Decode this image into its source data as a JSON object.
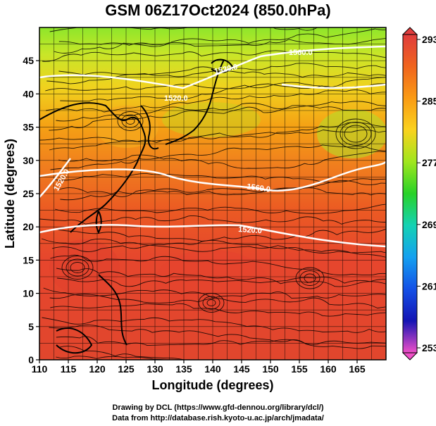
{
  "title": "GSM 06Z17Oct2024 (850.0hPa)",
  "x_axis": {
    "label": "Longitude (degrees)",
    "range": [
      110,
      170
    ],
    "ticks": [
      "110",
      "115",
      "120",
      "125",
      "130",
      "135",
      "140",
      "145",
      "150",
      "155",
      "160",
      "165"
    ]
  },
  "y_axis": {
    "label": "Latitude  (degrees)",
    "range": [
      0,
      50
    ],
    "ticks": [
      "0",
      "5",
      "10",
      "15",
      "20",
      "25",
      "30",
      "35",
      "40",
      "45"
    ]
  },
  "colorbar": {
    "min": 253,
    "max": 293,
    "labels": [
      "293",
      "285",
      "277",
      "269",
      "261",
      "253"
    ],
    "colors": [
      "#e03c3c",
      "#f0641e",
      "#fa9b14",
      "#fad21e",
      "#a0e61e",
      "#28d228",
      "#14d2b4",
      "#14a0f0",
      "#1450e6",
      "#1414b4",
      "#a014c8",
      "#f050c8"
    ]
  },
  "contours": {
    "color": "#ffffff",
    "labels": [
      "1520.0",
      "1560.0",
      "1520.0",
      "1560.0",
      "1520.0",
      "1520.0"
    ]
  },
  "credits": {
    "line1": "Drawing by DCL (https://www.gfd-dennou.org/library/dcl/)",
    "line2": "Data from http://database.rish.kyoto-u.ac.jp/arch/jmadata/"
  }
}
